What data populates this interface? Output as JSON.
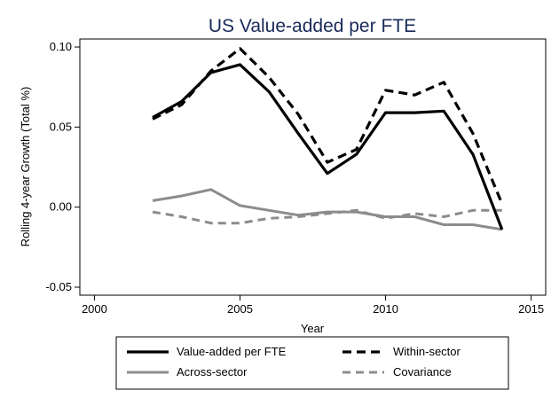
{
  "chart_data": {
    "type": "line",
    "title": "US Value-added per FTE",
    "xlabel": "Year",
    "ylabel": "Rolling 4-year Growth (Total %)",
    "xlim": [
      1999.5,
      2015.5
    ],
    "ylim": [
      -0.055,
      0.105
    ],
    "x_ticks": [
      2000,
      2005,
      2010,
      2015
    ],
    "x_tick_labels": [
      "2000",
      "2005",
      "2010",
      "2015"
    ],
    "y_ticks": [
      -0.05,
      0.0,
      0.05,
      0.1
    ],
    "y_tick_labels": [
      "-0.05",
      "0.00",
      "0.05",
      "0.10"
    ],
    "grid": false,
    "legend_position": "bottom",
    "x": [
      2002,
      2003,
      2004,
      2005,
      2006,
      2007,
      2008,
      2009,
      2010,
      2011,
      2012,
      2013,
      2014
    ],
    "series": [
      {
        "name": "Value-added per FTE",
        "color": "#000000",
        "style": "solid",
        "values": [
          0.056,
          0.066,
          0.084,
          0.089,
          0.072,
          0.046,
          0.021,
          0.033,
          0.059,
          0.059,
          0.06,
          0.033,
          -0.014
        ]
      },
      {
        "name": "Within-sector",
        "color": "#000000",
        "style": "dashed",
        "values": [
          0.055,
          0.064,
          0.085,
          0.099,
          0.081,
          0.058,
          0.028,
          0.036,
          0.073,
          0.07,
          0.078,
          0.046,
          0.002
        ]
      },
      {
        "name": "Across-sector",
        "color": "#8c8c8c",
        "style": "solid",
        "values": [
          0.004,
          0.007,
          0.011,
          0.001,
          -0.002,
          -0.005,
          -0.003,
          -0.003,
          -0.006,
          -0.006,
          -0.011,
          -0.011,
          -0.014
        ]
      },
      {
        "name": "Covariance",
        "color": "#8c8c8c",
        "style": "dashed",
        "values": [
          -0.003,
          -0.006,
          -0.01,
          -0.01,
          -0.007,
          -0.006,
          -0.004,
          -0.002,
          -0.007,
          -0.004,
          -0.006,
          -0.002,
          -0.002
        ]
      }
    ]
  }
}
